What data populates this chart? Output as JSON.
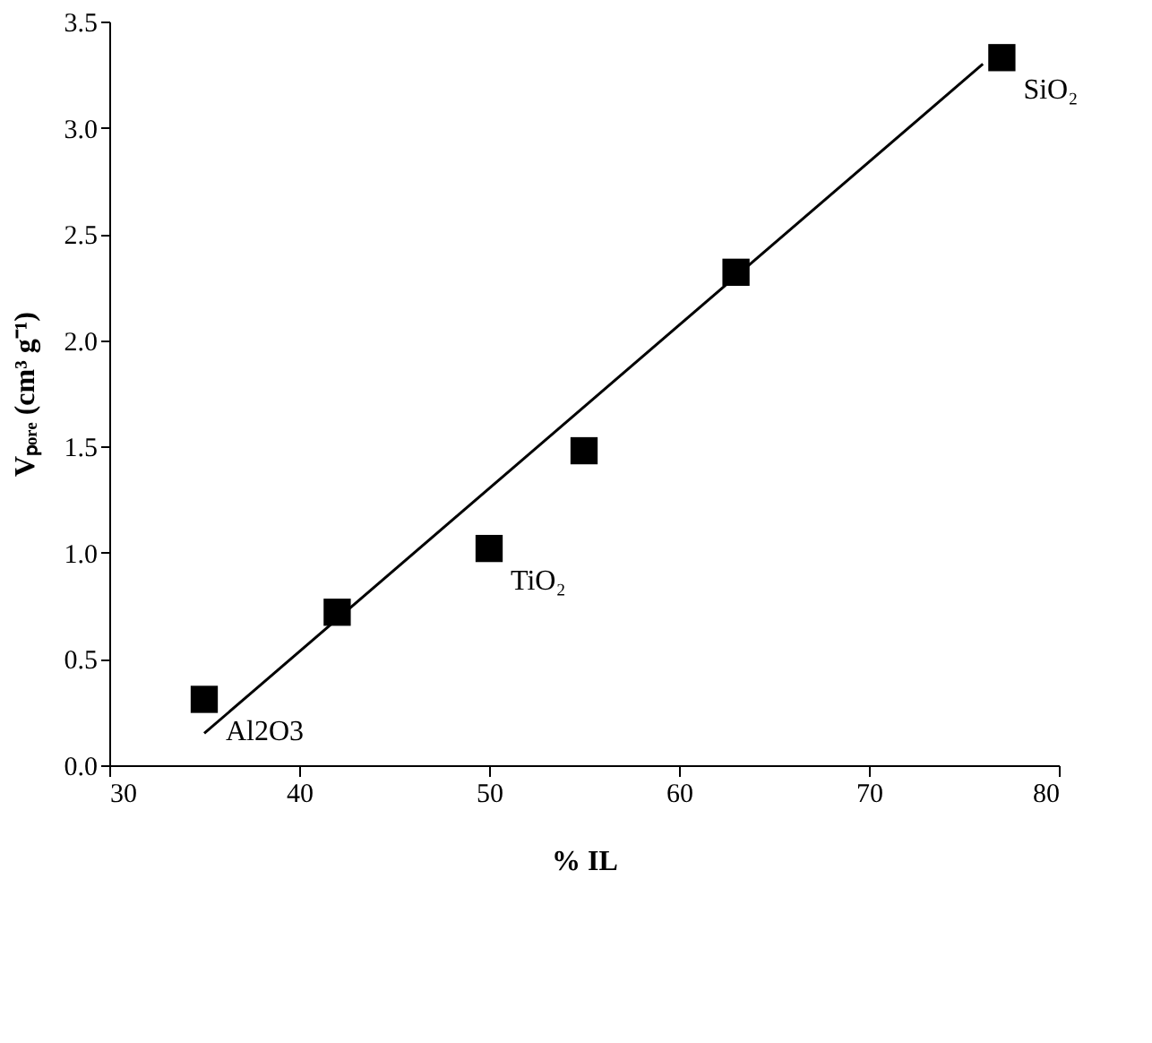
{
  "chart_data": {
    "type": "scatter",
    "xlabel": "% IL",
    "ylabel": "Vₚₒᵣₑ (cm³ g⁻¹)",
    "series": [
      {
        "color": "#000000",
        "marker": "square",
        "x": [
          35,
          42,
          50,
          55,
          63,
          77
        ],
        "values": [
          0.31,
          0.72,
          1.02,
          1.48,
          2.32,
          3.33
        ]
      },
      {
        "type": "line",
        "color": "#000000",
        "line_style": "solid",
        "marker": "none",
        "x": [
          35,
          76
        ],
        "values": [
          0.15,
          3.3
        ]
      }
    ],
    "annotations": [
      {
        "text": "Al2O3",
        "x": 35,
        "y": 0.31
      },
      {
        "text": "TiO₂",
        "x": 50,
        "y": 1.02
      },
      {
        "text": "SiO₂",
        "x": 77,
        "y": 3.33
      }
    ],
    "xlim": [
      30,
      80
    ],
    "xticks": [
      30,
      40,
      50,
      60,
      70,
      80
    ],
    "ylim": [
      0,
      3.5
    ],
    "yticks": [
      {
        "value": 0,
        "label": "0.0"
      },
      {
        "value": 0.5,
        "label": "0.5"
      },
      {
        "value": 1,
        "label": "1.0"
      },
      {
        "value": 1.5,
        "label": "1.5"
      },
      {
        "value": 2,
        "label": "2.0"
      },
      {
        "value": 2.5,
        "label": "2.5"
      },
      {
        "value": 3,
        "label": "3.0"
      },
      {
        "value": 3.5,
        "label": "3.5"
      }
    ],
    "grid": false
  }
}
